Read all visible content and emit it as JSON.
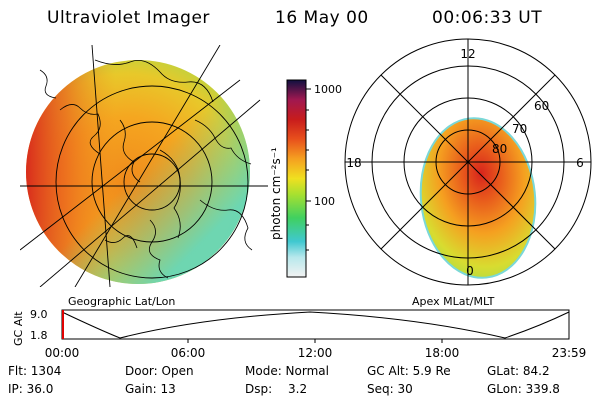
{
  "header": {
    "instrument": "Ultraviolet Imager",
    "date": "16 May 00",
    "time": "00:06:33 UT"
  },
  "left_panel": {
    "caption": "Geographic Lat/Lon"
  },
  "right_panel": {
    "caption": "Apex MLat/MLT",
    "mlt_labels": [
      "12",
      "18",
      "6",
      "0"
    ],
    "lat_labels": [
      "60",
      "70",
      "80"
    ]
  },
  "colorbar": {
    "unit_label": "photon cm⁻²s⁻¹",
    "ticks": [
      "1000",
      "100"
    ]
  },
  "altitude_plot": {
    "axis_label": "GC Alt",
    "y_ticks": [
      "9.0",
      "1.8"
    ],
    "x_ticks": [
      "00:00",
      "06:00",
      "12:00",
      "18:00",
      "23:59"
    ]
  },
  "status": {
    "flt": "Flt: 1304",
    "ip": "IP: 36.0",
    "door": "Door: Open",
    "gain": "Gain: 13",
    "mode": "Mode: Normal",
    "dsp_label": "Dsp:",
    "dsp_value": "3.2",
    "gc_alt": "GC Alt: 5.9 Re",
    "seq": "Seq: 30",
    "glat": "GLat: 84.2",
    "glon": "GLon: 339.8"
  }
}
